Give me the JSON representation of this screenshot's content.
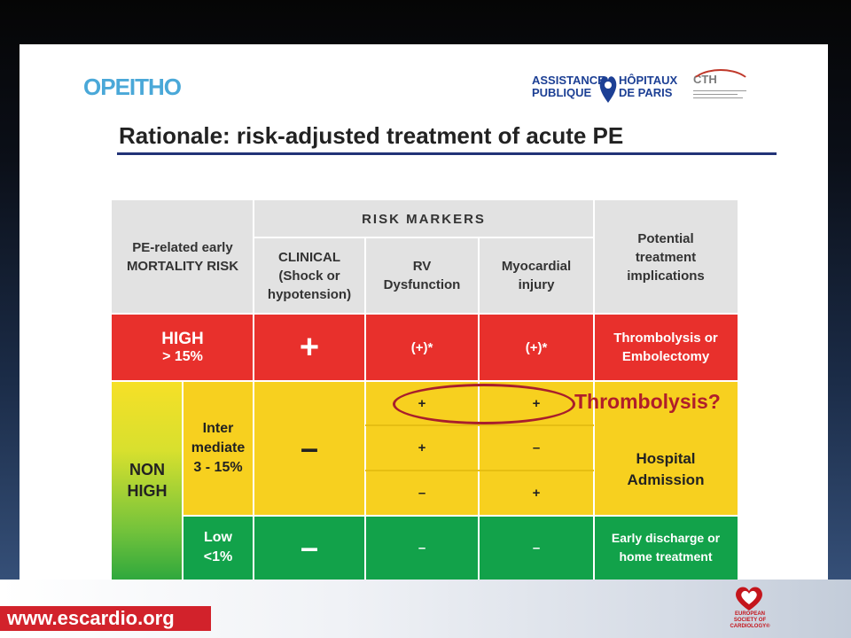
{
  "header": {
    "logo_left": "OPEITHO",
    "aphp_line1": "ASSISTANCE PUBLIQUE",
    "aphp_line2": "HÔPITAUX DE PARIS",
    "cth": "CTH",
    "title": "Rationale: risk-adjusted treatment of acute PE"
  },
  "table": {
    "head": {
      "risk": "PE-related early MORTALITY RISK",
      "markers": "RISK MARKERS",
      "clinical": "CLINICAL (Shock or hypotension)",
      "rv": "RV Dysfunction",
      "myo": "Myocardial injury",
      "implications": "Potential treatment implications"
    },
    "high": {
      "label": "HIGH",
      "pct": "> 15%",
      "clinical": "+",
      "rv": "(+)*",
      "myo": "(+)*",
      "treatment": "Thrombolysis or Embolectomy"
    },
    "nonhigh": "NON HIGH",
    "intermediate": {
      "label": "Inter mediate",
      "pct": "3 - 15%",
      "clinical": "–",
      "rows": [
        {
          "rv": "+",
          "myo": "+"
        },
        {
          "rv": "+",
          "myo": "–"
        },
        {
          "rv": "–",
          "myo": "+"
        }
      ],
      "treatment": "Hospital Admission"
    },
    "low": {
      "label": "Low",
      "pct": "<1%",
      "clinical": "–",
      "rv": "–",
      "myo": "–",
      "treatment": "Early discharge or home treatment"
    },
    "annotation": "Thrombolysis?"
  },
  "footer": {
    "url": "www.escardio.org",
    "esc": "EUROPEAN SOCIETY OF CARDIOLOGY®"
  },
  "colors": {
    "high": "#e8302c",
    "intermediate": "#f7d01f",
    "low": "#12a24a",
    "annotation": "#b01e2a"
  }
}
